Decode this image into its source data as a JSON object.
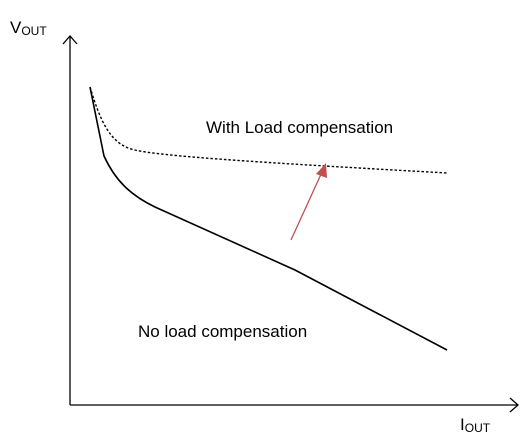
{
  "axes": {
    "y_label": {
      "main": "V",
      "sub": "OUT"
    },
    "x_label": {
      "main": "I",
      "sub": "OUT"
    }
  },
  "curves": [
    {
      "label": "With Load compensation"
    },
    {
      "label": "No load compensation"
    }
  ]
}
